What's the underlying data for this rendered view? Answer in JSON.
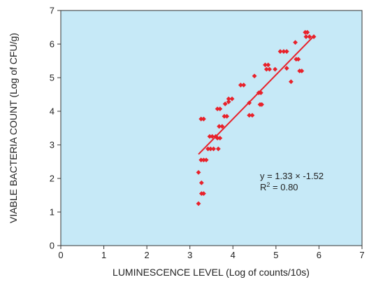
{
  "chart_data": {
    "type": "scatter",
    "title": "",
    "xlabel": "LUMINESCENCE LEVEL  (Log of counts/10s)",
    "ylabel": "VIABLE BACTERIA COUNT (Log of CFU/g)",
    "xlim": [
      0,
      7
    ],
    "ylim": [
      0,
      7
    ],
    "xticks": [
      "0",
      "1",
      "2",
      "3",
      "4",
      "5",
      "6",
      "7"
    ],
    "yticks": [
      "0",
      "1",
      "2",
      "3",
      "4",
      "5",
      "6",
      "7"
    ],
    "grid": false,
    "legend": "none",
    "colors": {
      "plot_bg": "#c6e9f7",
      "points": "#e8212a",
      "fit_line": "#e8212a"
    },
    "annotation": {
      "equation": "y = 1.33 × -1.52",
      "r2_prefix": "R",
      "r2_sup": "2",
      "r2_suffix": " = 0.80"
    },
    "fit_line": {
      "x": [
        3.2,
        5.85
      ],
      "y": [
        2.72,
        6.2
      ]
    },
    "points": [
      [
        3.2,
        1.25
      ],
      [
        3.2,
        2.18
      ],
      [
        3.27,
        1.55
      ],
      [
        3.32,
        1.55
      ],
      [
        3.27,
        1.87
      ],
      [
        3.26,
        2.55
      ],
      [
        3.32,
        2.55
      ],
      [
        3.38,
        2.55
      ],
      [
        3.26,
        3.77
      ],
      [
        3.32,
        3.77
      ],
      [
        3.42,
        2.88
      ],
      [
        3.48,
        2.88
      ],
      [
        3.55,
        2.88
      ],
      [
        3.46,
        3.25
      ],
      [
        3.52,
        3.25
      ],
      [
        3.6,
        3.25
      ],
      [
        3.66,
        2.88
      ],
      [
        3.64,
        3.2
      ],
      [
        3.7,
        3.2
      ],
      [
        3.64,
        4.07
      ],
      [
        3.7,
        4.07
      ],
      [
        3.68,
        3.55
      ],
      [
        3.75,
        3.55
      ],
      [
        3.8,
        3.85
      ],
      [
        3.86,
        3.85
      ],
      [
        3.82,
        4.22
      ],
      [
        3.9,
        4.28
      ],
      [
        3.9,
        4.37
      ],
      [
        3.98,
        4.37
      ],
      [
        4.18,
        4.78
      ],
      [
        4.25,
        4.78
      ],
      [
        4.38,
        4.25
      ],
      [
        4.38,
        3.88
      ],
      [
        4.45,
        3.88
      ],
      [
        4.5,
        5.05
      ],
      [
        4.6,
        4.55
      ],
      [
        4.65,
        4.55
      ],
      [
        4.63,
        4.2
      ],
      [
        4.67,
        4.2
      ],
      [
        4.75,
        5.38
      ],
      [
        4.82,
        5.38
      ],
      [
        4.78,
        5.25
      ],
      [
        4.85,
        5.25
      ],
      [
        4.98,
        5.25
      ],
      [
        5.1,
        5.78
      ],
      [
        5.18,
        5.78
      ],
      [
        5.25,
        5.78
      ],
      [
        5.25,
        5.28
      ],
      [
        5.35,
        4.88
      ],
      [
        5.45,
        6.05
      ],
      [
        5.47,
        5.55
      ],
      [
        5.52,
        5.55
      ],
      [
        5.55,
        5.2
      ],
      [
        5.6,
        5.2
      ],
      [
        5.68,
        6.35
      ],
      [
        5.73,
        6.35
      ],
      [
        5.7,
        6.22
      ],
      [
        5.78,
        6.22
      ],
      [
        5.88,
        6.22
      ]
    ]
  }
}
